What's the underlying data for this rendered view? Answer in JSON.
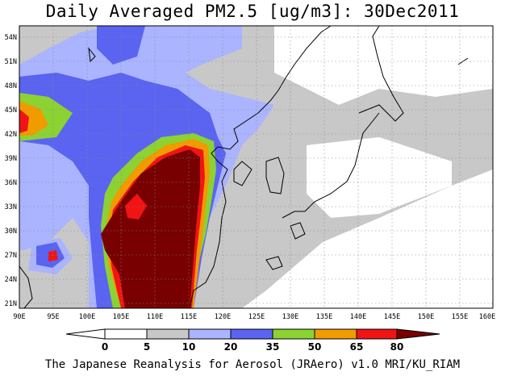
{
  "title": "Daily Averaged PM2.5 [ug/m3]: 30Dec2011",
  "footer": "The Japanese Reanalysis for Aerosol (JRAero) v1.0 MRI/KU_RIAM",
  "map": {
    "lon_range": [
      90,
      160
    ],
    "lat_range": [
      20,
      55
    ],
    "lon_ticks": [
      "90E",
      "95E",
      "100E",
      "105E",
      "110E",
      "115E",
      "120E",
      "125E",
      "130E",
      "135E",
      "140E",
      "145E",
      "150E",
      "155E",
      "160E"
    ],
    "lat_ticks": [
      "21N",
      "24N",
      "27N",
      "30N",
      "33N",
      "36N",
      "39N",
      "42N",
      "45N",
      "48N",
      "51N",
      "54N"
    ],
    "grid": true
  },
  "colorbar": {
    "levels": [
      "0",
      "5",
      "10",
      "20",
      "35",
      "50",
      "65",
      "80"
    ],
    "colors": [
      "#ffffff",
      "#c8c8c8",
      "#aab4ff",
      "#5a64f0",
      "#8cd232",
      "#f09b00",
      "#f01414",
      "#780000"
    ]
  }
}
